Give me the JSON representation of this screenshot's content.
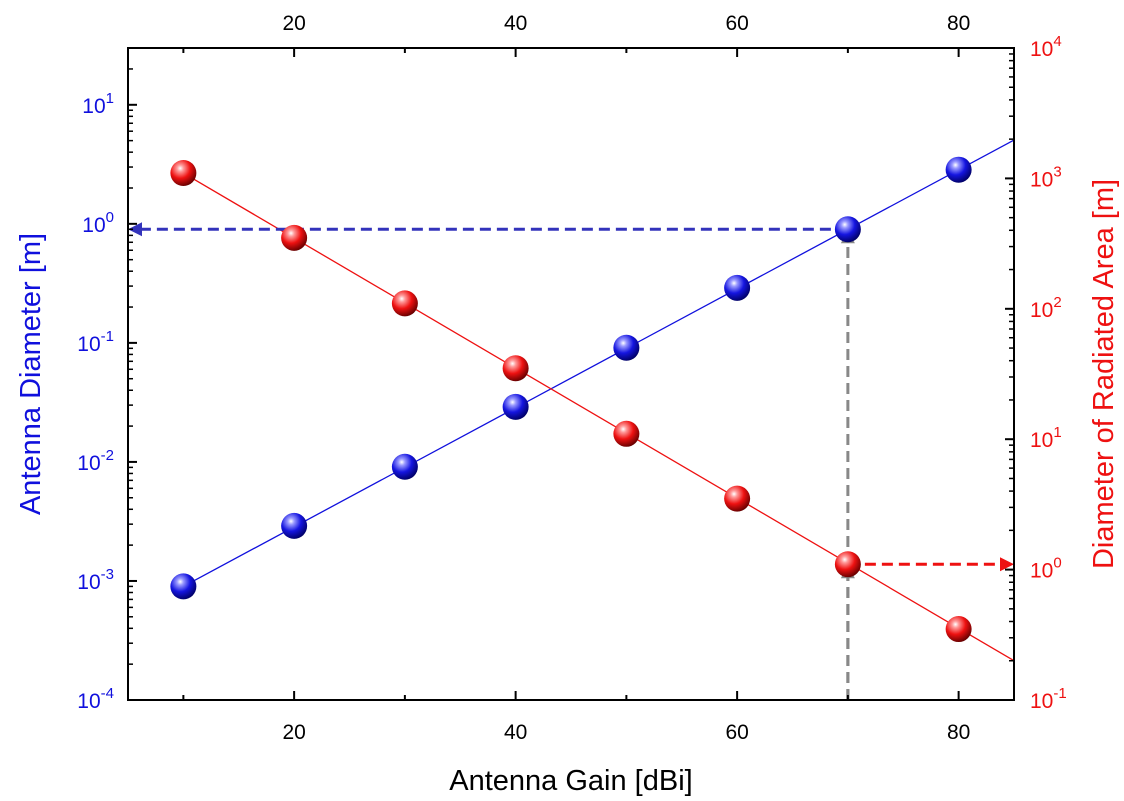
{
  "chart_data": {
    "type": "scatter",
    "xlabel": "Antenna Gain [dBi]",
    "ylabel_left": "Antenna Diameter [m]",
    "ylabel_right": "Diameter of Radiated Area [m]",
    "xlim": [
      5,
      85
    ],
    "ylim_left": [
      0.0001,
      30
    ],
    "ylim_right": [
      0.1,
      10000
    ],
    "yscale": "log",
    "grid": false,
    "legend": "none",
    "x_ticks": [
      20,
      40,
      60,
      80
    ],
    "y_left_ticks": [
      {
        "value": 0.0001,
        "base": "10",
        "exp": "-4"
      },
      {
        "value": 0.001,
        "base": "10",
        "exp": "-3"
      },
      {
        "value": 0.01,
        "base": "10",
        "exp": "-2"
      },
      {
        "value": 0.1,
        "base": "10",
        "exp": "-1"
      },
      {
        "value": 1,
        "base": "10",
        "exp": "0"
      },
      {
        "value": 10,
        "base": "10",
        "exp": "1"
      }
    ],
    "y_right_ticks": [
      {
        "value": 0.1,
        "base": "10",
        "exp": "-1"
      },
      {
        "value": 1,
        "base": "10",
        "exp": "0"
      },
      {
        "value": 10,
        "base": "10",
        "exp": "1"
      },
      {
        "value": 100,
        "base": "10",
        "exp": "2"
      },
      {
        "value": 1000,
        "base": "10",
        "exp": "3"
      },
      {
        "value": 10000,
        "base": "10",
        "exp": "4"
      }
    ],
    "series": [
      {
        "axis": "left",
        "color": "#1010dd",
        "x": [
          10,
          20,
          30,
          40,
          50,
          60,
          70,
          80
        ],
        "values": [
          0.0009,
          0.0029,
          0.0091,
          0.029,
          0.091,
          0.29,
          0.9,
          2.85
        ],
        "fit": {
          "x": [
            10,
            85
          ],
          "y": [
            0.0009,
            5.06
          ]
        }
      },
      {
        "axis": "right",
        "color": "#ee1111",
        "x": [
          10,
          20,
          30,
          40,
          50,
          60,
          70,
          80
        ],
        "values": [
          1100,
          350,
          110,
          35,
          11,
          3.5,
          1.1,
          0.35
        ],
        "fit": {
          "x": [
            10,
            85
          ],
          "y": [
            1100,
            0.2
          ]
        }
      }
    ],
    "annotations": [
      {
        "type": "dashed-arrow",
        "color": "#3333bb",
        "from": {
          "x": 70,
          "y": 0.9,
          "axis": "left"
        },
        "to": {
          "x": 5,
          "y": 0.9,
          "axis": "left"
        }
      },
      {
        "type": "dashed-arrow",
        "color": "#888888",
        "from": {
          "x": 70,
          "y": 0.0001,
          "axis": "left"
        },
        "to": {
          "x": 70,
          "y": 0.9,
          "axis": "left"
        }
      },
      {
        "type": "dashed-arrow",
        "color": "#888888",
        "from": {
          "x": 70,
          "y": 0.0001,
          "axis": "left"
        },
        "to": {
          "x": 70,
          "y": 1.1,
          "axis": "right"
        }
      },
      {
        "type": "dashed-arrow",
        "color": "#ee1111",
        "from": {
          "x": 70,
          "y": 1.1,
          "axis": "right"
        },
        "to": {
          "x": 85,
          "y": 1.1,
          "axis": "right"
        }
      }
    ],
    "colors": {
      "left_axis": "#1010dd",
      "right_axis": "#ee1111",
      "frame": "#000000"
    }
  }
}
